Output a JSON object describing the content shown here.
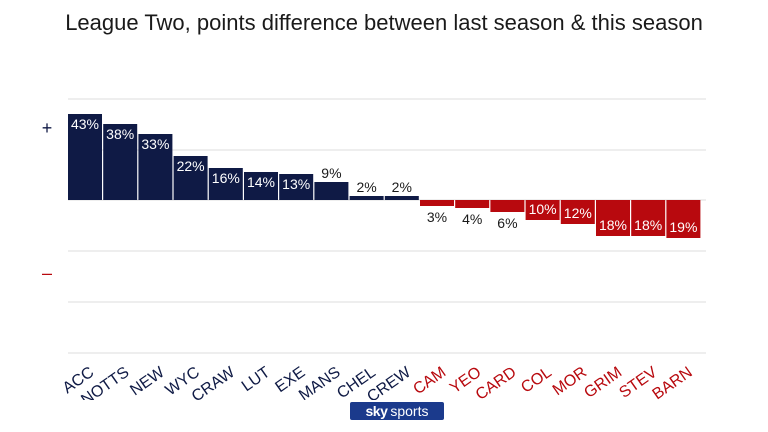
{
  "title": "League Two, points difference between last season & this season",
  "legend": {
    "plus": "+",
    "minus": "–"
  },
  "brand": {
    "sky": "sky",
    "sports": "sports"
  },
  "colors": {
    "positive": "#0f1a45",
    "negative": "#b8090e",
    "grid": "#dddddd",
    "title": "#1a1a1a"
  },
  "chart_data": {
    "type": "bar",
    "title": "League Two, points difference between last season & this season",
    "xlabel": "",
    "ylabel": "",
    "unit": "%",
    "categories": [
      "ACC",
      "NOTTS",
      "NEW",
      "WYC",
      "CRAW",
      "LUT",
      "EXE",
      "MANS",
      "CHEL",
      "CREW",
      "CAM",
      "YEO",
      "CARD",
      "COL",
      "MOR",
      "GRIM",
      "STEV",
      "BARN"
    ],
    "values": [
      43,
      38,
      33,
      22,
      16,
      14,
      13,
      9,
      2,
      2,
      -3,
      -4,
      -6,
      -10,
      -12,
      -18,
      -18,
      -19
    ],
    "labels": [
      "43%",
      "38%",
      "33%",
      "22%",
      "16%",
      "14%",
      "13%",
      "9%",
      "2%",
      "2%",
      "3%",
      "4%",
      "6%",
      "10%",
      "12%",
      "18%",
      "18%",
      "19%"
    ],
    "ylim": [
      -60,
      40
    ],
    "grid": true,
    "legend": "left"
  }
}
